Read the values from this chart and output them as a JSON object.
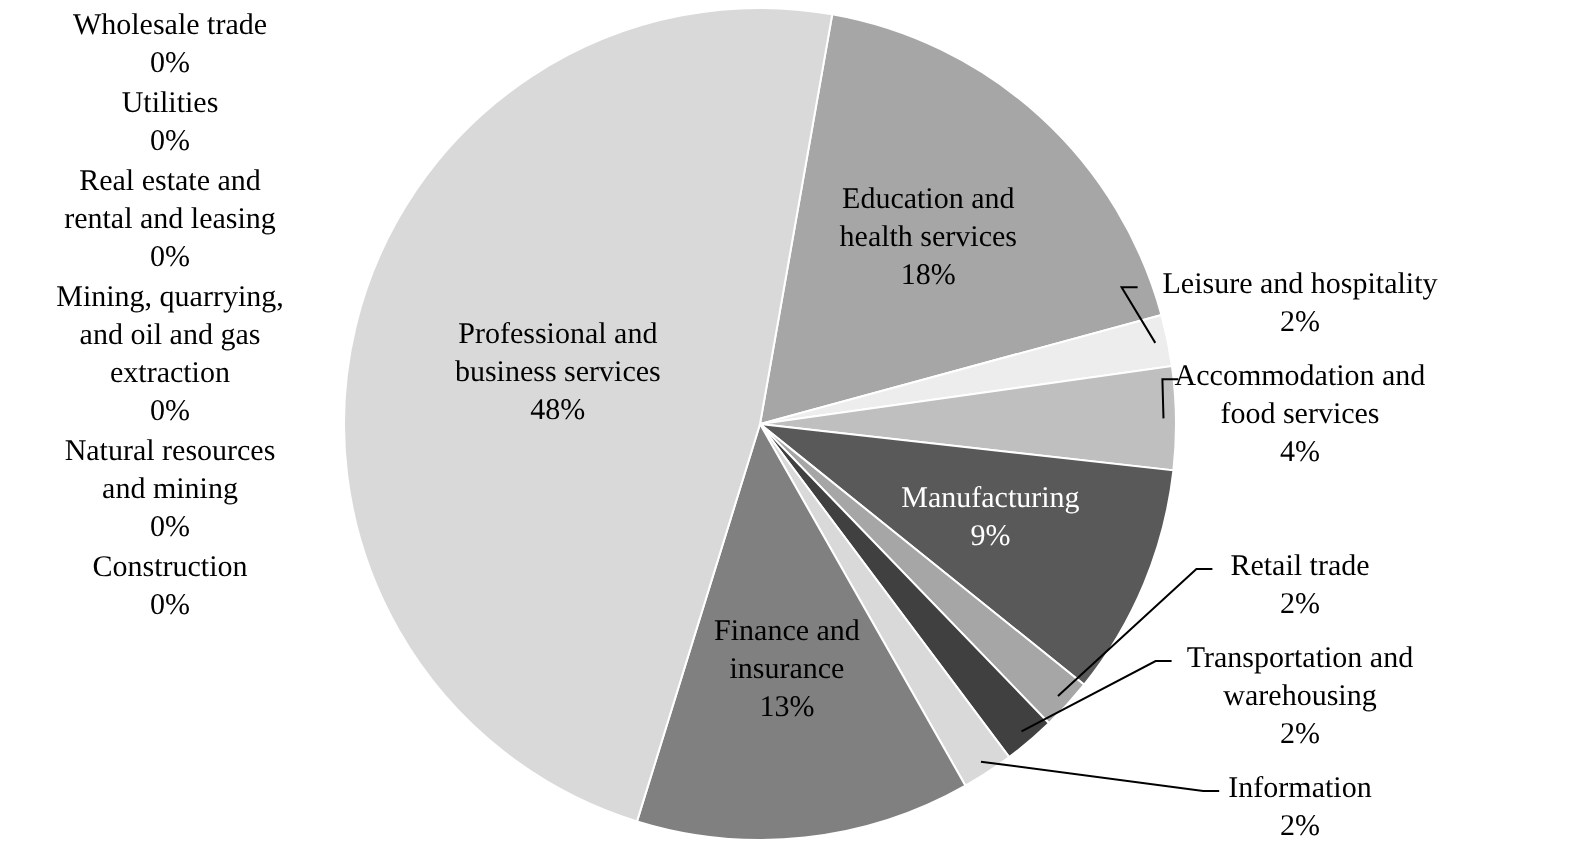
{
  "chart_data": {
    "type": "pie",
    "categories": [
      "Education and health services",
      "Leisure and hospitality",
      "Accommodation and food services",
      "Manufacturing",
      "Retail trade",
      "Transportation and warehousing",
      "Information",
      "Finance and insurance",
      "Professional and business services",
      "Construction",
      "Natural resources and mining",
      "Mining, quarrying, and oil and gas extraction",
      "Real estate and rental and leasing",
      "Utilities",
      "Wholesale trade"
    ],
    "values": [
      18,
      2,
      4,
      9,
      2,
      2,
      2,
      13,
      48,
      0,
      0,
      0,
      0,
      0,
      0
    ],
    "value_labels": [
      "18%",
      "2%",
      "4%",
      "9%",
      "2%",
      "2%",
      "2%",
      "13%",
      "48%",
      "0%",
      "0%",
      "0%",
      "0%",
      "0%",
      "0%"
    ],
    "colors": [
      "#a6a6a6",
      "#ededed",
      "#bfbfbf",
      "#595959",
      "#a6a6a6",
      "#404040",
      "#d9d9d9",
      "#808080",
      "#d9d9d9",
      "#7f7f7f",
      "#bfbfbf",
      "#595959",
      "#a6a6a6",
      "#404040",
      "#d9d9d9"
    ]
  }
}
